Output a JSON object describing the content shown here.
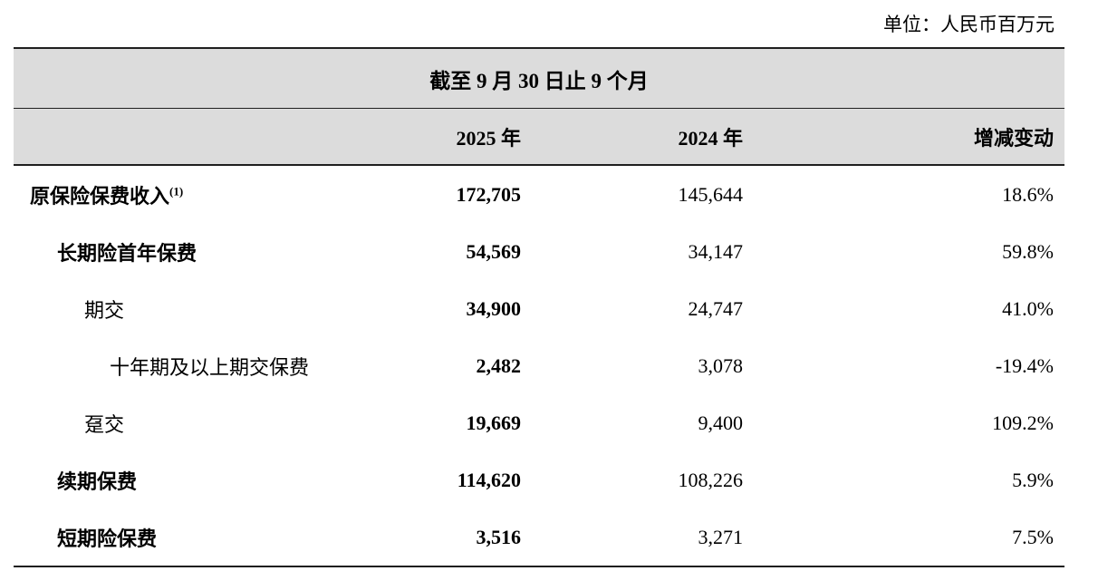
{
  "unit_note": "单位：人民币百万元",
  "table": {
    "period_header": "截至 9 月 30 日止 9 个月",
    "columns": [
      "2025 年",
      "2024 年",
      "增减变动"
    ],
    "rows": [
      {
        "label": "原保险保费收入",
        "superscript": "(1)",
        "indent": 0,
        "bold": true,
        "v2025": "172,705",
        "v2024": "145,644",
        "change": "18.6%"
      },
      {
        "label": "长期险首年保费",
        "superscript": "",
        "indent": 1,
        "bold": true,
        "v2025": "54,569",
        "v2024": "34,147",
        "change": "59.8%"
      },
      {
        "label": "期交",
        "superscript": "",
        "indent": 2,
        "bold": false,
        "v2025": "34,900",
        "v2024": "24,747",
        "change": "41.0%"
      },
      {
        "label": "十年期及以上期交保费",
        "superscript": "",
        "indent": 3,
        "bold": false,
        "v2025": "2,482",
        "v2024": "3,078",
        "change": "-19.4%"
      },
      {
        "label": "趸交",
        "superscript": "",
        "indent": 2,
        "bold": false,
        "v2025": "19,669",
        "v2024": "9,400",
        "change": "109.2%"
      },
      {
        "label": "续期保费",
        "superscript": "",
        "indent": 1,
        "bold": true,
        "v2025": "114,620",
        "v2024": "108,226",
        "change": "5.9%"
      },
      {
        "label": "短期险保费",
        "superscript": "",
        "indent": 1,
        "bold": true,
        "v2025": "3,516",
        "v2024": "3,271",
        "change": "7.5%"
      }
    ]
  },
  "colors": {
    "header_bg": "#dcdcdc",
    "border": "#1f1f1f",
    "text": "#000000"
  }
}
